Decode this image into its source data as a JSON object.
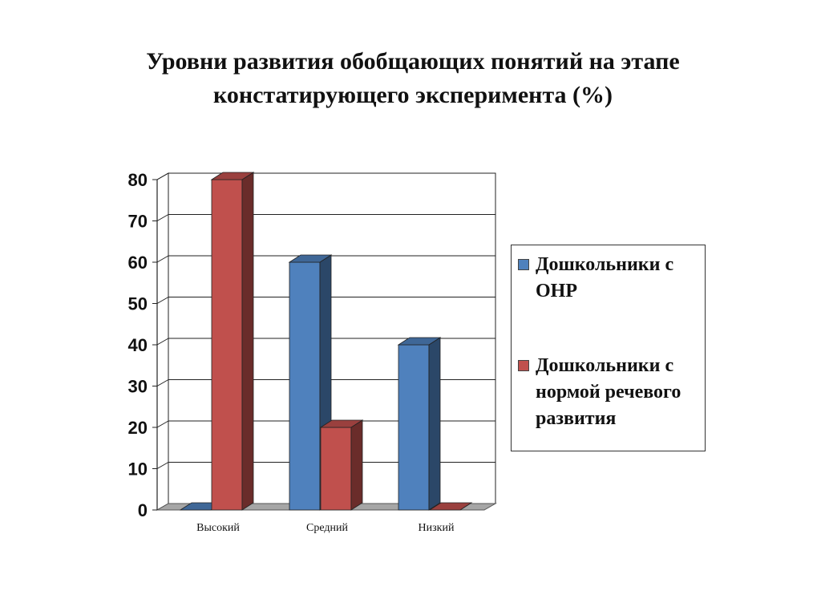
{
  "title": "Уровни развития обобщающих понятий на этапе констатирующего эксперимента  (%)",
  "colors": {
    "series_0": "#4f81bd",
    "series_1": "#c0504d"
  },
  "chart_data": {
    "type": "bar",
    "title": "Уровни развития обобщающих понятий на этапе констатирующего эксперимента  (%)",
    "categories": [
      "Высокий",
      "Средний",
      "Низкий"
    ],
    "series": [
      {
        "name": "Дошкольники с ОНР",
        "values": [
          0,
          60,
          40
        ]
      },
      {
        "name": "Дошкольники с нормой речевого развития",
        "values": [
          80,
          20,
          0
        ]
      }
    ],
    "ylim": [
      0,
      80
    ],
    "yticks": [
      0,
      10,
      20,
      30,
      40,
      50,
      60,
      70,
      80
    ],
    "grid": true,
    "legend": "right",
    "xlabel": "",
    "ylabel": ""
  }
}
